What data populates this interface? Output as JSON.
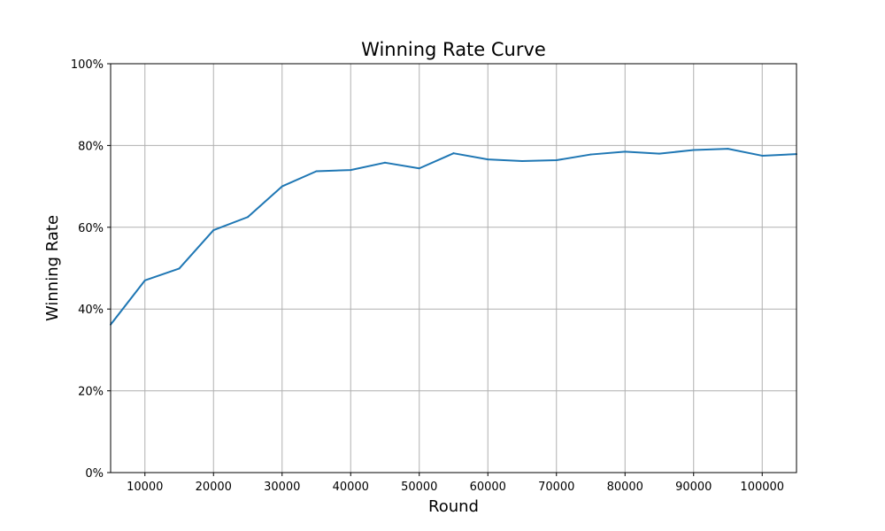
{
  "chart_data": {
    "type": "line",
    "title": "Winning Rate Curve",
    "xlabel": "Round",
    "ylabel": "Winning Rate",
    "xlim": [
      5000,
      105000
    ],
    "ylim": [
      0,
      1
    ],
    "x_ticks": [
      10000,
      20000,
      30000,
      40000,
      50000,
      60000,
      70000,
      80000,
      90000,
      100000
    ],
    "x_tick_labels": [
      "10000",
      "20000",
      "30000",
      "40000",
      "50000",
      "60000",
      "70000",
      "80000",
      "90000",
      "100000"
    ],
    "y_ticks": [
      0,
      0.2,
      0.4,
      0.6,
      0.8,
      1.0
    ],
    "y_tick_labels": [
      "0%",
      "20%",
      "40%",
      "60%",
      "80%",
      "100%"
    ],
    "grid": true,
    "series": [
      {
        "color": "#1f77b4",
        "x": [
          5000,
          10000,
          15000,
          20000,
          25000,
          30000,
          35000,
          40000,
          45000,
          50000,
          55000,
          60000,
          65000,
          70000,
          75000,
          80000,
          85000,
          90000,
          95000,
          100000,
          105000
        ],
        "values": [
          0.362,
          0.47,
          0.499,
          0.593,
          0.625,
          0.7,
          0.737,
          0.74,
          0.758,
          0.744,
          0.781,
          0.766,
          0.762,
          0.764,
          0.778,
          0.785,
          0.78,
          0.789,
          0.792,
          0.775,
          0.779
        ]
      }
    ]
  }
}
